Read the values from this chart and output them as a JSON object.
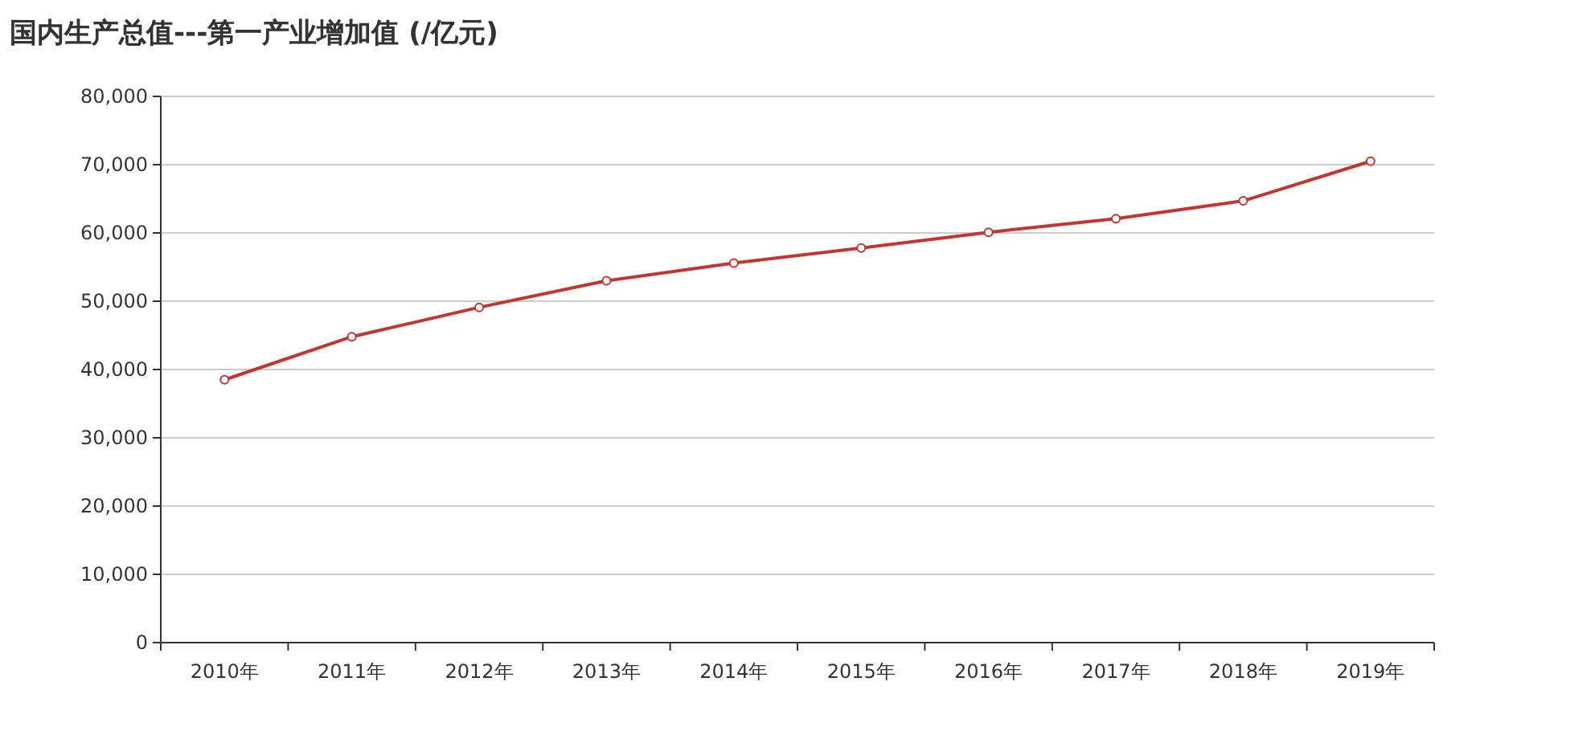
{
  "chart_data": {
    "type": "line",
    "title": "国内生产总值---第一产业增加值 (/亿元)",
    "categories": [
      "2010年",
      "2011年",
      "2012年",
      "2013年",
      "2014年",
      "2015年",
      "2016年",
      "2017年",
      "2018年",
      "2019年"
    ],
    "series": [
      {
        "color": "#c23531",
        "values": [
          38500,
          44800,
          49100,
          53000,
          55600,
          57800,
          60100,
          62100,
          64700,
          70500
        ]
      }
    ],
    "ylim": [
      0,
      80000
    ],
    "yticks": [
      0,
      {
        "value": 10000,
        "label": "10,000"
      },
      {
        "value": 20000,
        "label": "20,000"
      },
      {
        "value": 30000,
        "label": "30,000"
      },
      {
        "value": 40000,
        "label": "40,000"
      },
      {
        "value": 50000,
        "label": "50,000"
      },
      {
        "value": 60000,
        "label": "60,000"
      },
      {
        "value": 70000,
        "label": "70,000"
      },
      {
        "value": 80000,
        "label": "80,000"
      }
    ],
    "grid": "y",
    "marker": "circle",
    "line_style": "solid"
  }
}
